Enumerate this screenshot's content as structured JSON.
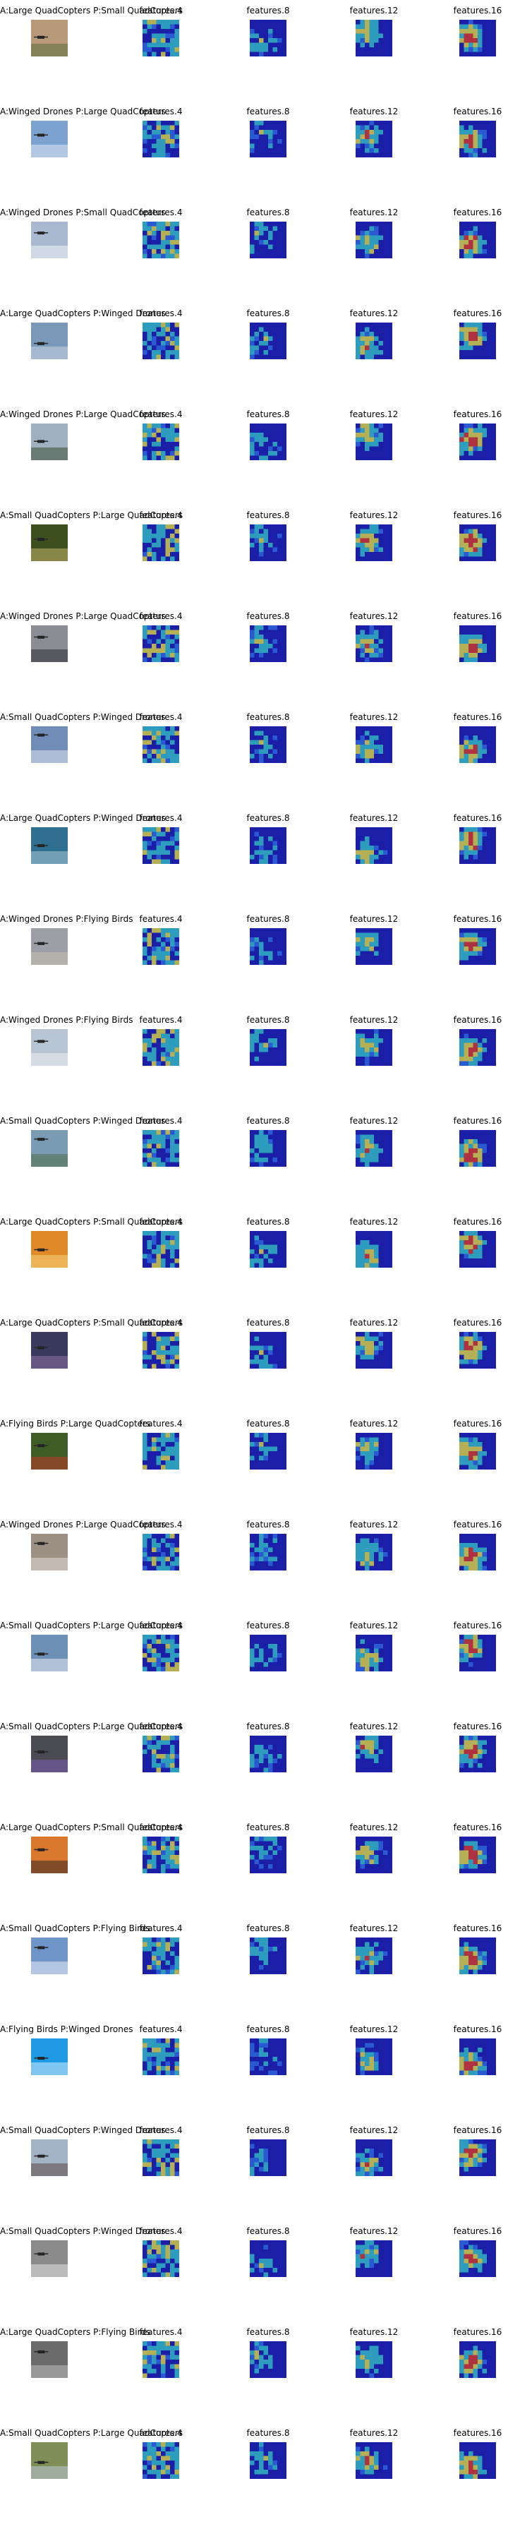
{
  "column_labels": [
    "features.4",
    "features.8",
    "features.12",
    "features.16"
  ],
  "rows": [
    {
      "title": "A:Large QuadCopters P:Small QuadCopters",
      "scene": "#b89a7a",
      "accent": "#5a6b3a"
    },
    {
      "title": "A:Winged Drones P:Large QuadCopters",
      "scene": "#7ea2cf",
      "accent": "#dfe8f2"
    },
    {
      "title": "A:Winged Drones P:Small QuadCopters",
      "scene": "#a9b9cf",
      "accent": "#eef2f7"
    },
    {
      "title": "A:Large QuadCopters P:Winged Drones",
      "scene": "#7a99b8",
      "accent": "#c9d6e3"
    },
    {
      "title": "A:Winged Drones P:Large QuadCopters",
      "scene": "#9fb0bf",
      "accent": "#3d4f36"
    },
    {
      "title": "A:Small QuadCopters P:Large QuadCopters",
      "scene": "#3d4f1f",
      "accent": "#c7b46a"
    },
    {
      "title": "A:Winged Drones P:Large QuadCopters",
      "scene": "#8a8d93",
      "accent": "#2e3034"
    },
    {
      "title": "A:Small QuadCopters P:Winged Drones",
      "scene": "#6f8db7",
      "accent": "#dfe4ec"
    },
    {
      "title": "A:Large QuadCopters P:Winged Drones",
      "scene": "#2f6f8f",
      "accent": "#a7c7d6"
    },
    {
      "title": "A:Winged Drones P:Flying Birds",
      "scene": "#9c9fa5",
      "accent": "#c8bfb0"
    },
    {
      "title": "A:Winged Drones P:Flying Birds",
      "scene": "#b7c4d2",
      "accent": "#eef1f4"
    },
    {
      "title": "A:Small QuadCopters P:Winged Drones",
      "scene": "#7a9cb3",
      "accent": "#4f6b45"
    },
    {
      "title": "A:Large QuadCopters P:Small QuadCopters",
      "scene": "#e08a2a",
      "accent": "#f6d57a"
    },
    {
      "title": "A:Large QuadCopters P:Small QuadCopters",
      "scene": "#3a3a5e",
      "accent": "#8f6fa3"
    },
    {
      "title": "A:Flying Birds P:Large QuadCopters",
      "scene": "#3f5b26",
      "accent": "#c13a2a"
    },
    {
      "title": "A:Winged Drones P:Large QuadCopters",
      "scene": "#9c8f83",
      "accent": "#e4e0da"
    },
    {
      "title": "A:Small QuadCopters P:Large QuadCopters",
      "scene": "#6e8fb6",
      "accent": "#e6ebf2"
    },
    {
      "title": "A:Small QuadCopters P:Large QuadCopters",
      "scene": "#4a4a52",
      "accent": "#7c5fb0"
    },
    {
      "title": "A:Large QuadCopters P:Small QuadCopters",
      "scene": "#d9772c",
      "accent": "#3a2a2a"
    },
    {
      "title": "A:Small QuadCopters P:Flying Birds",
      "scene": "#6f95c9",
      "accent": "#e9eef5"
    },
    {
      "title": "A:Flying Birds P:Winged Drones",
      "scene": "#1f9be6",
      "accent": "#cfe9fb"
    },
    {
      "title": "A:Small QuadCopters P:Winged Drones",
      "scene": "#a3b2c4",
      "accent": "#5b4b44"
    },
    {
      "title": "A:Small QuadCopters P:Winged Drones",
      "scene": "#8b8b8b",
      "accent": "#e3e3e3"
    },
    {
      "title": "A:Large QuadCopters P:Flying Birds",
      "scene": "#6b6b6b",
      "accent": "#bdbdbd"
    },
    {
      "title": "A:Small QuadCopters P:Large QuadCopters",
      "scene": "#7d8f57",
      "accent": "#b9c7d8"
    }
  ],
  "heat_palette": {
    "cold": "#1b1fa8",
    "cool": "#2f6fe0",
    "mid": "#34c7c4",
    "warm": "#e9e13a",
    "hot": "#e23a1e"
  }
}
